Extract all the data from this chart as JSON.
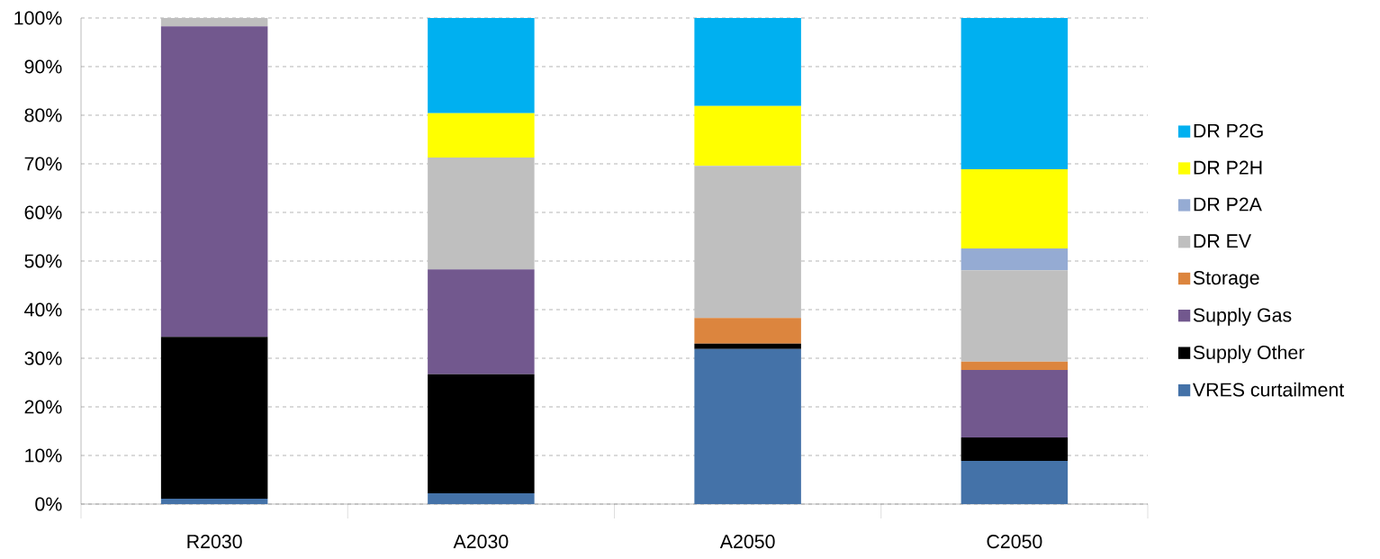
{
  "chart_data": {
    "type": "bar",
    "stacked": true,
    "categories": [
      "R2030",
      "A2030",
      "A2050",
      "C2050"
    ],
    "series": [
      {
        "name": "VRES curtailment",
        "color": "#4472a8",
        "values": [
          1.1,
          2.2,
          31.9,
          8.9
        ]
      },
      {
        "name": "Supply Other",
        "color": "#000000",
        "values": [
          33.3,
          24.5,
          1.1,
          4.8
        ]
      },
      {
        "name": "Supply Gas",
        "color": "#72588e",
        "values": [
          63.9,
          21.6,
          0,
          13.9
        ]
      },
      {
        "name": "Storage",
        "color": "#dc853e",
        "values": [
          0,
          0,
          5.3,
          1.7
        ]
      },
      {
        "name": "DR EV",
        "color": "#bfbfbf",
        "values": [
          1.7,
          23,
          31.3,
          18.8
        ]
      },
      {
        "name": "DR P2A",
        "color": "#95abd3",
        "values": [
          0,
          0,
          0,
          4.5
        ]
      },
      {
        "name": "DR P2H",
        "color": "#ffff00",
        "values": [
          0,
          9.1,
          12.3,
          16.3
        ]
      },
      {
        "name": "DR P2G",
        "color": "#00b0f0",
        "values": [
          0,
          19.6,
          18.1,
          31.1
        ]
      }
    ],
    "ylim": [
      0,
      100
    ],
    "yticks": [
      {
        "value": 0,
        "label": "0%"
      },
      {
        "value": 10,
        "label": "10%"
      },
      {
        "value": 20,
        "label": "20%"
      },
      {
        "value": 30,
        "label": "30%"
      },
      {
        "value": 40,
        "label": "40%"
      },
      {
        "value": 50,
        "label": "50%"
      },
      {
        "value": 60,
        "label": "60%"
      },
      {
        "value": 70,
        "label": "70%"
      },
      {
        "value": 80,
        "label": "80%"
      },
      {
        "value": 90,
        "label": "90%"
      },
      {
        "value": 100,
        "label": "100%"
      }
    ],
    "grid": "y",
    "legend": "right"
  }
}
